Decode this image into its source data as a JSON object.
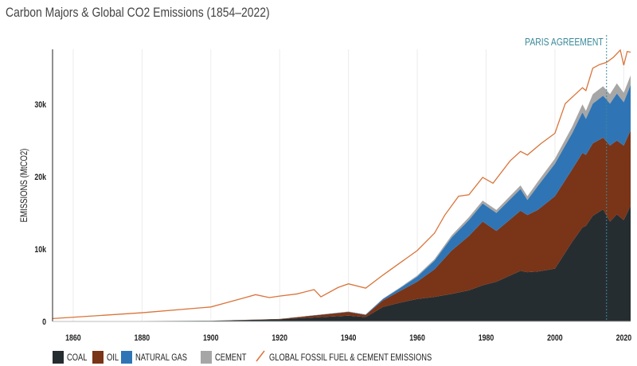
{
  "colors": {
    "coal": "#262d31",
    "oil": "#7a3417",
    "natural_gas": "#2f75b5",
    "cement": "#a6a6a6",
    "global": "#d9743a",
    "annotation": "#3a8a9a"
  },
  "chart_data": {
    "type": "area",
    "stacked": true,
    "title": "Carbon Majors & Global CO2 Emissions (1854–2022)",
    "xlabel": "",
    "ylabel": "EMISSIONS (MtCO2)",
    "xlim": [
      1854,
      2022
    ],
    "ylim": [
      0,
      37600
    ],
    "x_ticks": [
      "1860",
      "1880",
      "1900",
      "1920",
      "1940",
      "1960",
      "1980",
      "2000",
      "2020"
    ],
    "y_ticks": [
      "0",
      "10k",
      "20k",
      "30k"
    ],
    "grid": "vertical",
    "legend_position": "bottom",
    "annotation": {
      "label": "PARIS AGREEMENT",
      "year": 2015
    },
    "x": [
      1854,
      1880,
      1900,
      1920,
      1940,
      1945,
      1950,
      1955,
      1960,
      1965,
      1970,
      1975,
      1979,
      1983,
      1990,
      1992,
      1995,
      2000,
      2005,
      2008,
      2009,
      2011,
      2014,
      2016,
      2018,
      2020,
      2022
    ],
    "series": [
      {
        "name": "COAL",
        "values": [
          0,
          50,
          100,
          300,
          800,
          600,
          2000,
          2600,
          3100,
          3400,
          3800,
          4300,
          5000,
          5500,
          7000,
          6800,
          6900,
          7300,
          11000,
          13000,
          13200,
          14600,
          15500,
          13800,
          14800,
          14000,
          16000
        ]
      },
      {
        "name": "OIL",
        "values": [
          0,
          0,
          0,
          50,
          500,
          300,
          900,
          1600,
          2400,
          3800,
          6000,
          7500,
          8800,
          7000,
          8300,
          7900,
          8500,
          10000,
          10000,
          10300,
          9800,
          10000,
          9900,
          10500,
          10200,
          10300,
          10400
        ]
      },
      {
        "name": "NATURAL GAS",
        "values": [
          0,
          0,
          0,
          0,
          50,
          50,
          200,
          400,
          700,
          1200,
          1800,
          2200,
          2500,
          2500,
          3000,
          2100,
          3300,
          4500,
          5000,
          5600,
          5000,
          5500,
          5800,
          5800,
          6500,
          6000,
          6300
        ]
      },
      {
        "name": "CEMENT",
        "values": [
          0,
          0,
          0,
          0,
          20,
          20,
          50,
          100,
          150,
          200,
          300,
          400,
          400,
          400,
          500,
          500,
          600,
          700,
          900,
          1100,
          1100,
          1300,
          1300,
          1300,
          1400,
          1300,
          1300
        ]
      }
    ],
    "line": {
      "name": "GLOBAL FOSSIL FUEL & CEMENT EMISSIONS",
      "x": [
        1854,
        1880,
        1900,
        1910,
        1913,
        1917,
        1920,
        1925,
        1930,
        1932,
        1937,
        1940,
        1945,
        1950,
        1955,
        1960,
        1965,
        1968,
        1972,
        1975,
        1979,
        1982,
        1987,
        1990,
        1992,
        1996,
        2000,
        2003,
        2008,
        2009,
        2011,
        2013,
        2015,
        2017,
        2019,
        2020,
        2021,
        2022
      ],
      "values": [
        400,
        1200,
        2000,
        3300,
        3700,
        3300,
        3500,
        3800,
        4400,
        3400,
        4700,
        5200,
        4600,
        6400,
        8100,
        9800,
        12200,
        14700,
        17300,
        17500,
        19900,
        19100,
        22200,
        23500,
        23000,
        24600,
        26000,
        30100,
        32300,
        31900,
        35000,
        35500,
        35800,
        36500,
        37500,
        35400,
        37300,
        37200
      ]
    }
  },
  "legend": [
    {
      "label": "COAL",
      "key": "coal"
    },
    {
      "label": "OIL",
      "key": "oil"
    },
    {
      "label": "NATURAL GAS",
      "key": "natural_gas"
    },
    {
      "label": "CEMENT",
      "key": "cement"
    },
    {
      "label": "GLOBAL FOSSIL FUEL & CEMENT EMISSIONS",
      "key": "global"
    }
  ]
}
